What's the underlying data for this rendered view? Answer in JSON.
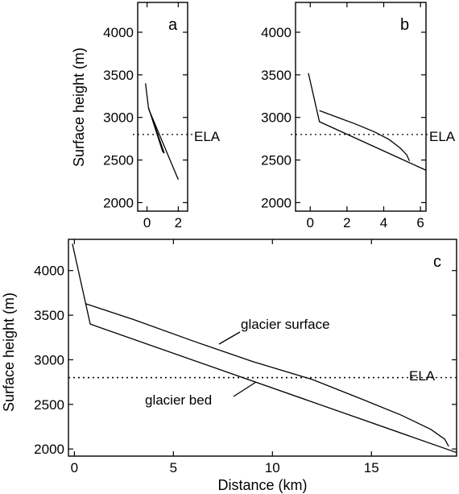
{
  "chart_data": [
    {
      "type": "line",
      "panel": "a",
      "xlabel": "",
      "ylabel": "Surface height (m)",
      "xlim": [
        -0.6,
        2.6
      ],
      "ylim": [
        1900,
        4350
      ],
      "xticks": [
        0,
        2
      ],
      "yticks": [
        2000,
        2500,
        3000,
        3500,
        4000
      ],
      "ela": {
        "label": "ELA",
        "value": 2800
      },
      "series": [
        {
          "x": [
            -0.1,
            0.1,
            2.0
          ],
          "y": [
            3400,
            3100,
            2270
          ]
        },
        {
          "x": [
            0.15,
            1.1,
            1.0,
            0.1
          ],
          "y": [
            3080,
            2580,
            2600,
            3110
          ]
        }
      ]
    },
    {
      "type": "line",
      "panel": "b",
      "xlabel": "",
      "ylabel": "",
      "xlim": [
        -0.8,
        6.3
      ],
      "ylim": [
        1900,
        4350
      ],
      "xticks": [
        0,
        2,
        4,
        6
      ],
      "yticks": [
        2000,
        2500,
        3000,
        3500,
        4000
      ],
      "ela": {
        "label": "ELA",
        "value": 2800
      },
      "series": [
        {
          "x": [
            -0.1,
            0.5,
            6.3
          ],
          "y": [
            3520,
            2950,
            2380
          ]
        },
        {
          "x": [
            0.5,
            1.5,
            2.5,
            3.5,
            4.3,
            4.9,
            5.25,
            5.4
          ],
          "y": [
            3080,
            3000,
            2920,
            2830,
            2740,
            2640,
            2560,
            2490
          ]
        }
      ]
    },
    {
      "type": "line",
      "panel": "c",
      "xlabel": "Distance (km)",
      "ylabel": "Surface height (m)",
      "xlim": [
        -0.3,
        19.3
      ],
      "ylim": [
        1920,
        4350
      ],
      "xticks": [
        0,
        5,
        10,
        15
      ],
      "yticks": [
        2000,
        2500,
        3000,
        3500,
        4000
      ],
      "ela": {
        "label": "ELA",
        "value": 2800
      },
      "annotations": {
        "surface": "glacier surface",
        "bed": "glacier bed"
      },
      "series": [
        {
          "name": "glacier bed",
          "x": [
            -0.1,
            0.8,
            19.3
          ],
          "y": [
            4300,
            3400,
            1960
          ]
        },
        {
          "name": "glacier surface",
          "x": [
            0.55,
            3,
            6,
            9,
            12,
            14.5,
            16.5,
            18,
            18.7,
            18.9
          ],
          "y": [
            3630,
            3450,
            3210,
            2980,
            2780,
            2560,
            2380,
            2220,
            2110,
            2030
          ]
        }
      ]
    }
  ]
}
